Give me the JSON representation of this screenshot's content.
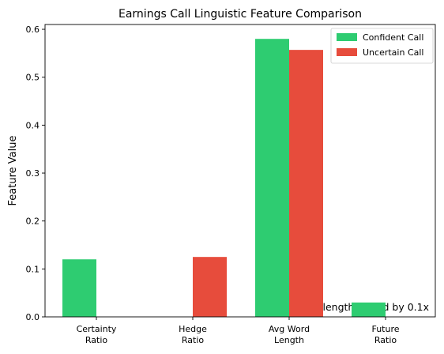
{
  "chart_data": {
    "type": "bar",
    "title": "Earnings Call Linguistic Feature Comparison",
    "xlabel": "",
    "ylabel": "Feature Value",
    "categories": [
      "Certainty Ratio",
      "Hedge Ratio",
      "Avg Word Length",
      "Future Ratio"
    ],
    "category_lines": [
      [
        "Certainty",
        "Ratio"
      ],
      [
        "Hedge",
        "Ratio"
      ],
      [
        "Avg Word",
        "Length"
      ],
      [
        "Future",
        "Ratio"
      ]
    ],
    "series": [
      {
        "name": "Confident Call",
        "color": "#2ecc71",
        "values": [
          0.12,
          0.0,
          0.58,
          0.03
        ]
      },
      {
        "name": "Uncertain Call",
        "color": "#e74c3c",
        "values": [
          0.0,
          0.125,
          0.557,
          0.0
        ]
      }
    ],
    "ylim": [
      0,
      0.61
    ],
    "yticks": [
      0.0,
      0.1,
      0.2,
      0.3,
      0.4,
      0.5,
      0.6
    ],
    "ytick_labels": [
      "0.0",
      "0.1",
      "0.2",
      "0.3",
      "0.4",
      "0.5",
      "0.6"
    ],
    "grid": false,
    "legend_position": "top-right",
    "annotation": "*Avg word length scaled by 0.1x"
  }
}
